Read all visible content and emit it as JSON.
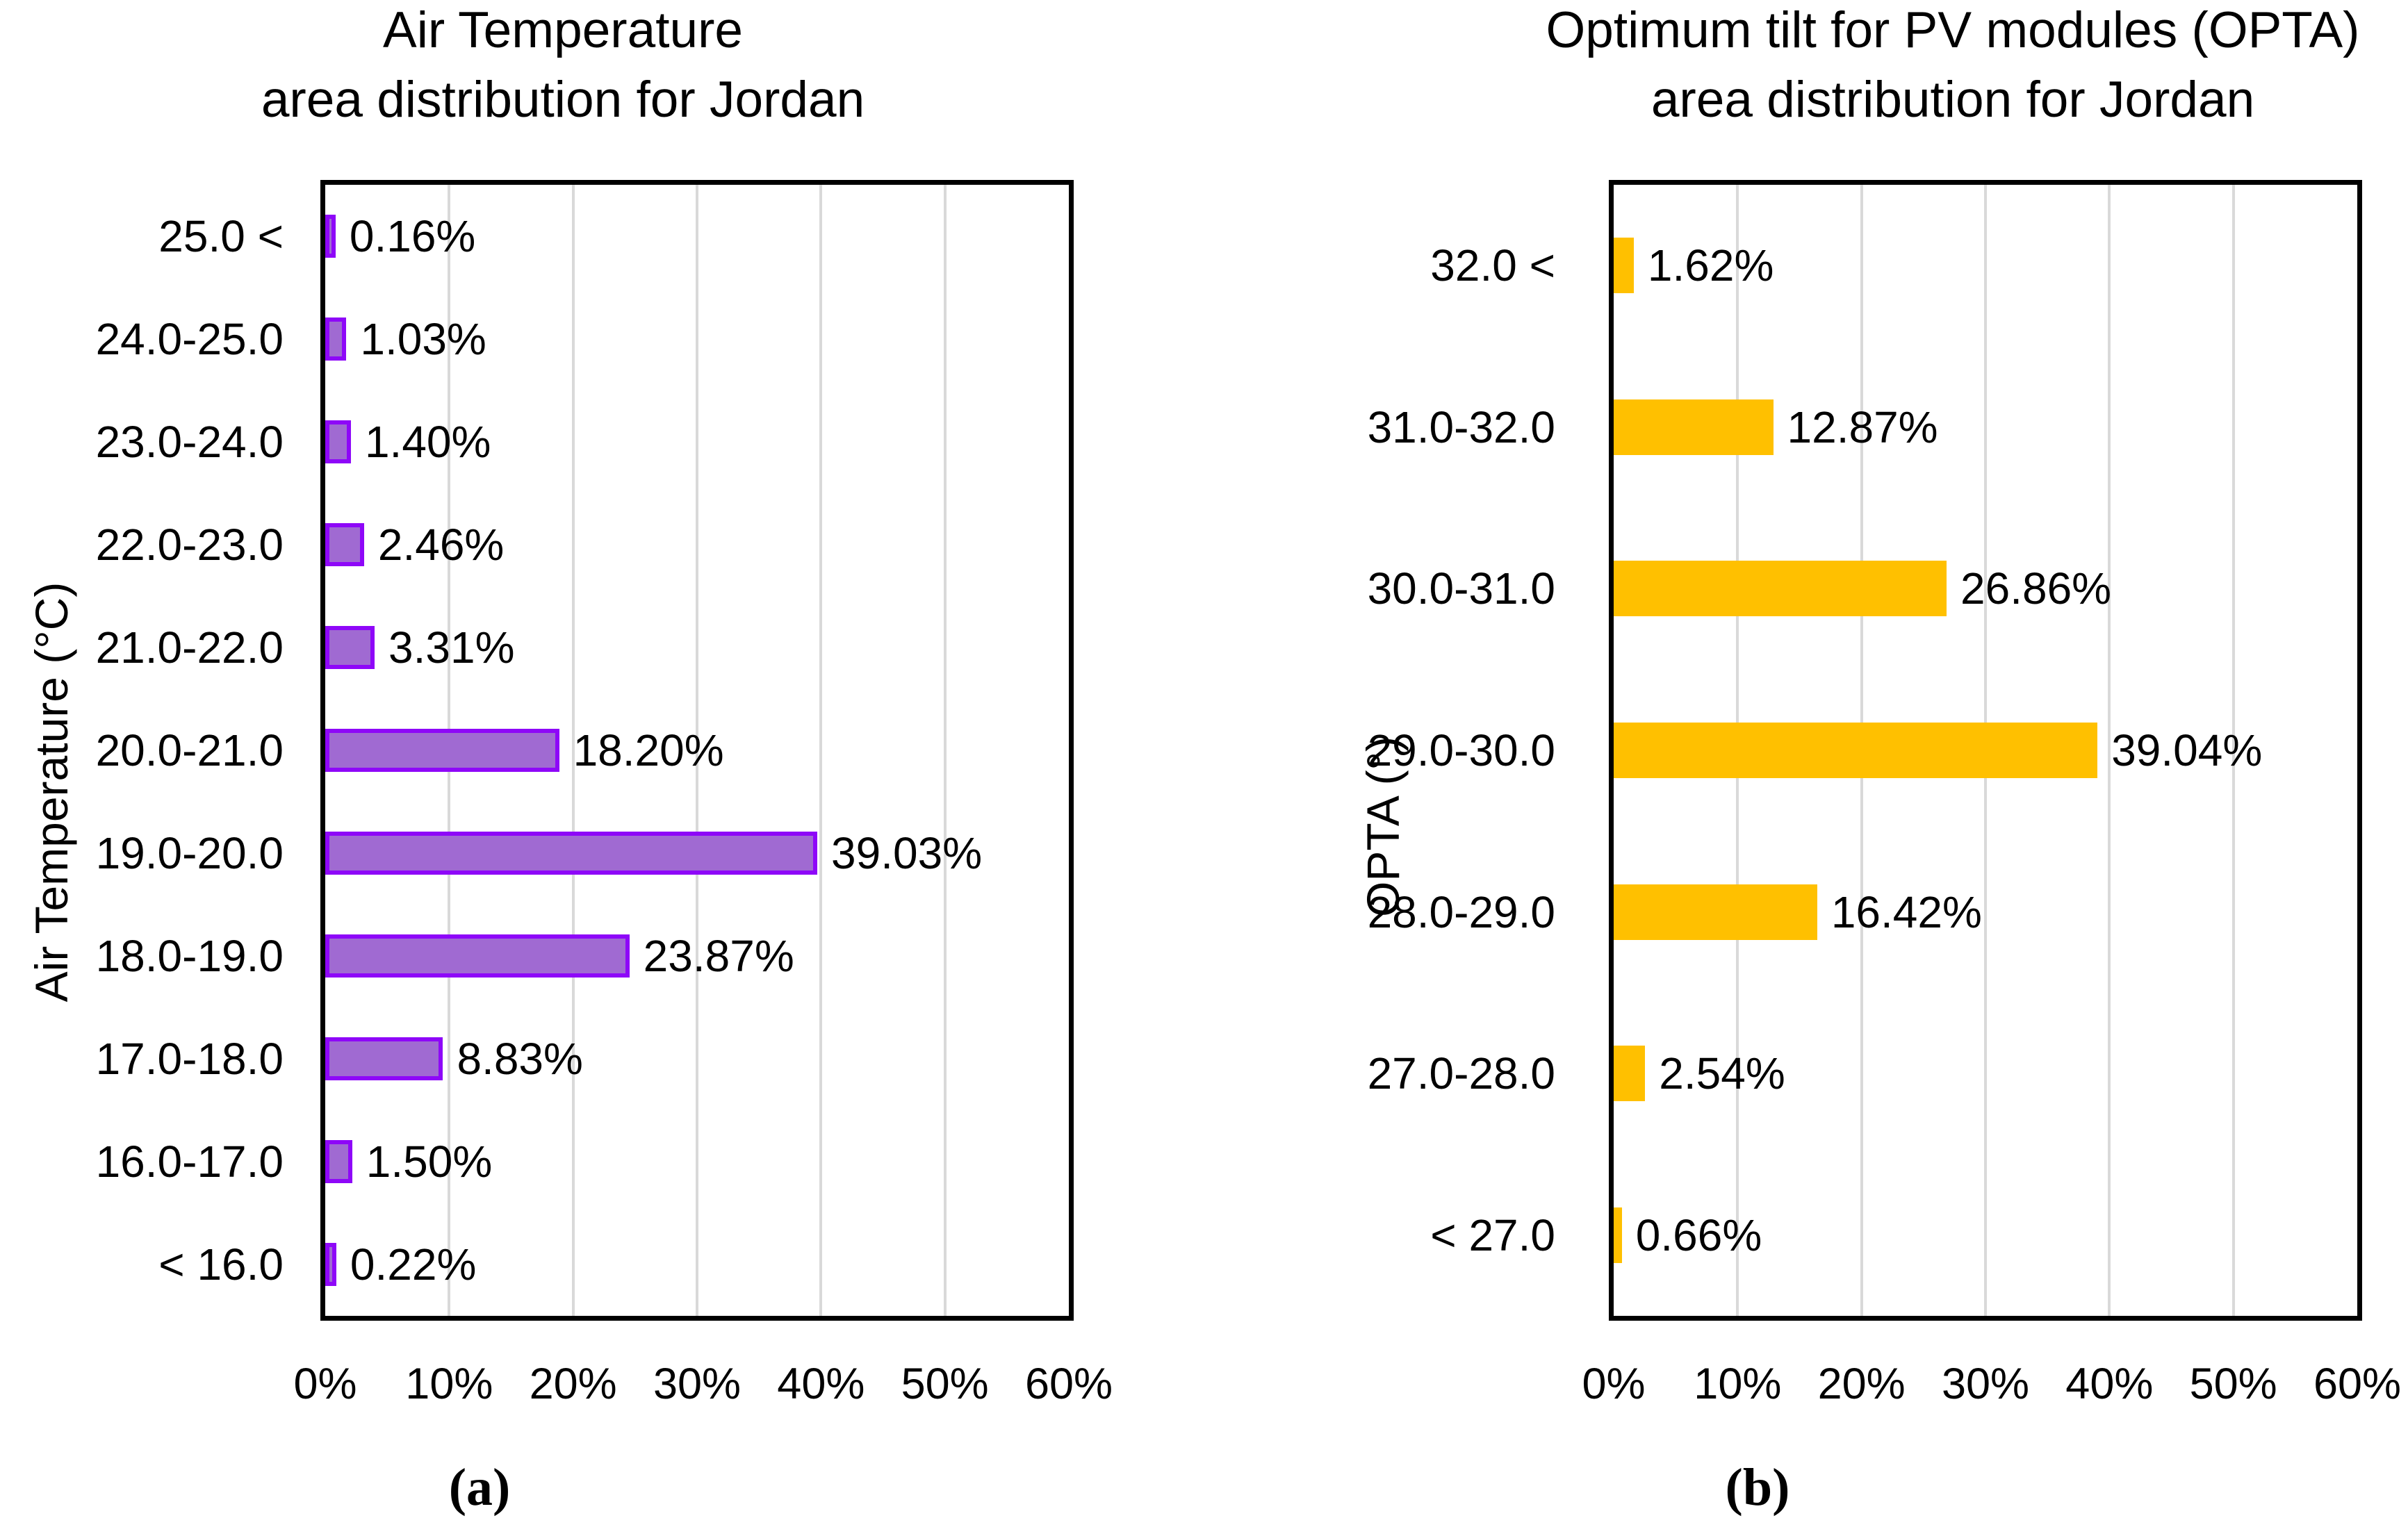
{
  "colors": {
    "background": "#FFFFFF",
    "text": "#000000",
    "plot_border": "#000000",
    "gridline": "#D9D9D9",
    "purple_fill": "#A06AD2",
    "purple_border": "#8E07F8",
    "gold_fill": "#FFC000"
  },
  "chart_data": [
    {
      "type": "bar",
      "orientation": "horizontal",
      "title": "Air Temperature area distribution for Jordan",
      "title_lines": [
        "Air Temperature",
        "area distribution for Jordan"
      ],
      "ylabel": "Air Temperature (°C)",
      "xlabel": "",
      "caption": "(a)",
      "categories": [
        "25.0 <",
        "24.0-25.0",
        "23.0-24.0",
        "22.0-23.0",
        "21.0-22.0",
        "20.0-21.0",
        "19.0-20.0",
        "18.0-19.0",
        "17.0-18.0",
        "16.0-17.0",
        "< 16.0"
      ],
      "values": [
        0.16,
        1.03,
        1.4,
        2.46,
        3.31,
        18.2,
        39.03,
        23.87,
        8.83,
        1.5,
        0.22
      ],
      "value_labels": [
        "0.16%",
        "1.03%",
        "1.40%",
        "2.46%",
        "3.31%",
        "18.20%",
        "39.03%",
        "23.87%",
        "8.83%",
        "1.50%",
        "0.22%"
      ],
      "xlim": [
        0,
        60
      ],
      "x_tick_labels": [
        "0%",
        "10%",
        "20%",
        "30%",
        "40%",
        "50%",
        "60%"
      ],
      "grid": true,
      "legend": false,
      "bar_fill": "#A06AD2",
      "bar_border": "#8E07F8"
    },
    {
      "type": "bar",
      "orientation": "horizontal",
      "title": "Optimum tilt for PV modules (OPTA) area distribution for Jordan",
      "title_lines": [
        "Optimum tilt for PV modules (OPTA)",
        "area distribution for Jordan"
      ],
      "ylabel": "OPTA (°)",
      "xlabel": "",
      "caption": "(b)",
      "categories": [
        "32.0 <",
        "31.0-32.0",
        "30.0-31.0",
        "29.0-30.0",
        "28.0-29.0",
        "27.0-28.0",
        "< 27.0"
      ],
      "values": [
        1.62,
        12.87,
        26.86,
        39.04,
        16.42,
        2.54,
        0.66
      ],
      "value_labels": [
        "1.62%",
        "12.87%",
        "26.86%",
        "39.04%",
        "16.42%",
        "2.54%",
        "0.66%"
      ],
      "xlim": [
        0,
        60
      ],
      "x_tick_labels": [
        "0%",
        "10%",
        "20%",
        "30%",
        "40%",
        "50%",
        "60%"
      ],
      "grid": true,
      "legend": false,
      "bar_fill": "#FFC000",
      "bar_border": ""
    }
  ]
}
